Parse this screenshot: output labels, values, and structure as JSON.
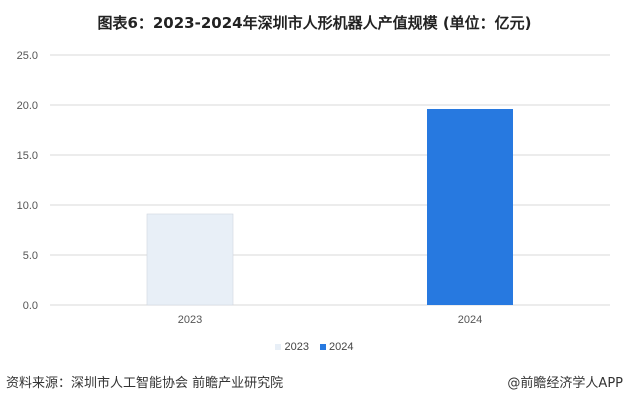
{
  "chart_data": {
    "type": "bar",
    "title": "图表6：2023-2024年深圳市人形机器人产值规模 (单位：亿元)",
    "categories": [
      "2023",
      "2024"
    ],
    "values": [
      9.1,
      19.6
    ],
    "bar_colors": [
      "#e8eff7",
      "#2779e0"
    ],
    "ylim": [
      0,
      25
    ],
    "yticks": [
      "0.0",
      "5.0",
      "10.0",
      "15.0",
      "20.0",
      "25.0"
    ],
    "grid": true,
    "legend": {
      "placement": "bottom",
      "entries": [
        "2023",
        "2024"
      ]
    }
  },
  "footer": {
    "source": "资料来源：深圳市人工智能协会 前瞻产业研究院",
    "brand": "@前瞻经济学人APP"
  }
}
